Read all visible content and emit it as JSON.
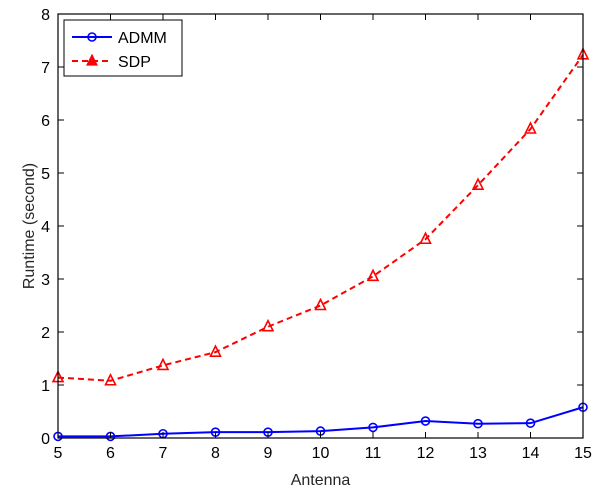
{
  "chart_data": {
    "type": "line",
    "title": "",
    "xlabel": "Antenna",
    "ylabel": "Runtime (second)",
    "xlim": [
      5,
      15
    ],
    "ylim": [
      0,
      8
    ],
    "xticks": [
      5,
      6,
      7,
      8,
      9,
      10,
      11,
      12,
      13,
      14,
      15
    ],
    "yticks": [
      0,
      1,
      2,
      3,
      4,
      5,
      6,
      7,
      8
    ],
    "grid": false,
    "legend_position": "top-left",
    "x": [
      5,
      6,
      7,
      8,
      9,
      10,
      11,
      12,
      13,
      14,
      15
    ],
    "series": [
      {
        "name": "ADMM",
        "color": "#0000ff",
        "line_style": "solid",
        "marker": "circle",
        "values": [
          0.03,
          0.03,
          0.08,
          0.11,
          0.11,
          0.13,
          0.2,
          0.32,
          0.27,
          0.28,
          0.58
        ]
      },
      {
        "name": "SDP",
        "color": "#ff0000",
        "line_style": "dashed",
        "marker": "triangle",
        "values": [
          1.14,
          1.08,
          1.37,
          1.62,
          2.1,
          2.5,
          3.05,
          3.75,
          4.77,
          5.83,
          7.23
        ]
      }
    ]
  }
}
